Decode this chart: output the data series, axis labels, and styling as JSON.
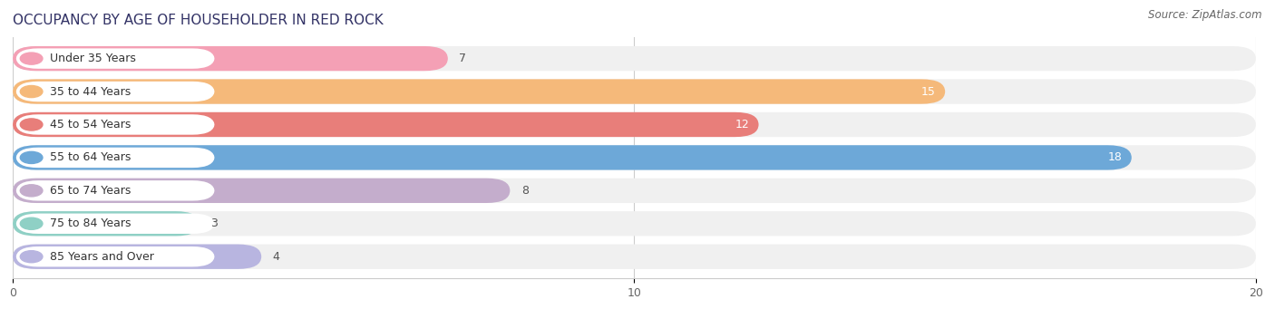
{
  "title": "OCCUPANCY BY AGE OF HOUSEHOLDER IN RED ROCK",
  "source": "Source: ZipAtlas.com",
  "categories": [
    "Under 35 Years",
    "35 to 44 Years",
    "45 to 54 Years",
    "55 to 64 Years",
    "65 to 74 Years",
    "75 to 84 Years",
    "85 Years and Over"
  ],
  "values": [
    7,
    15,
    12,
    18,
    8,
    3,
    4
  ],
  "bar_colors": [
    "#F4A0B5",
    "#F5B97A",
    "#E87E7A",
    "#6DA8D8",
    "#C4ADCC",
    "#8FD0C5",
    "#B8B5E0"
  ],
  "xlim": [
    0,
    20
  ],
  "xticks": [
    0,
    10,
    20
  ],
  "background_color": "#ffffff",
  "bar_bg_color": "#f0f0f0",
  "title_fontsize": 11,
  "label_fontsize": 9,
  "value_fontsize": 9,
  "source_fontsize": 8.5,
  "value_threshold_white": 10
}
